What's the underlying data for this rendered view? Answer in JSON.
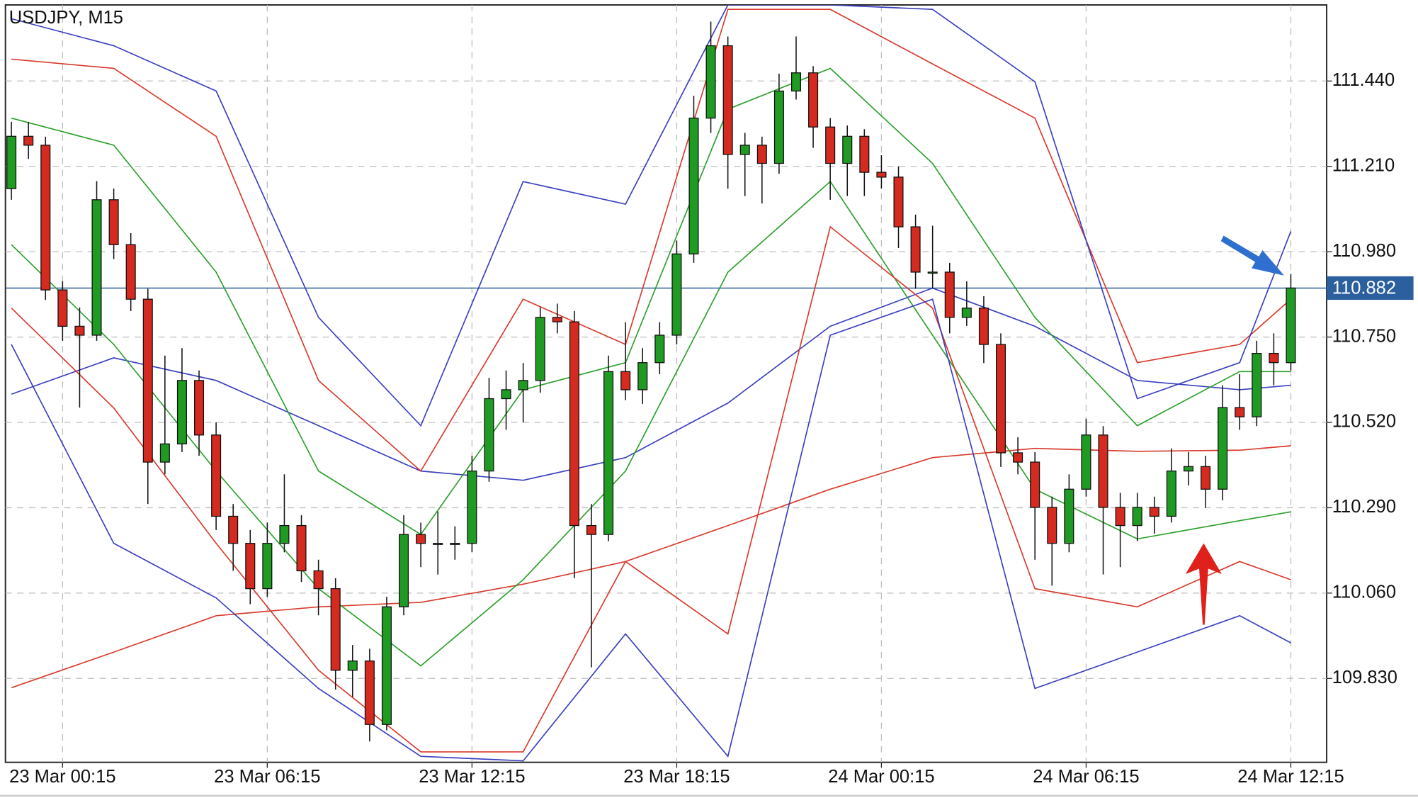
{
  "chart_data": {
    "type": "candlestick",
    "title": "USDJPY, M15",
    "bull_color": "#1f9a22",
    "bear_color": "#d42a1f",
    "xlim": [
      -3.35,
      74.1
    ],
    "ylim": [
      109.604,
      111.645
    ],
    "xticks": [
      {
        "value": 0,
        "label": "23 Mar 00:15"
      },
      {
        "value": 12,
        "label": "23 Mar 06:15"
      },
      {
        "value": 24,
        "label": "23 Mar 12:15"
      },
      {
        "value": 36,
        "label": "23 Mar 18:15"
      },
      {
        "value": 48,
        "label": "24 Mar 00:15"
      },
      {
        "value": 60,
        "label": "24 Mar 06:15"
      },
      {
        "value": 72,
        "label": "24 Mar 12:15"
      }
    ],
    "yticks": [
      {
        "value": 109.83,
        "label": "109.830"
      },
      {
        "value": 110.06,
        "label": "110.060"
      },
      {
        "value": 110.29,
        "label": "110.290"
      },
      {
        "value": 110.52,
        "label": "110.520"
      },
      {
        "value": 110.75,
        "label": "110.750"
      },
      {
        "value": 110.98,
        "label": "110.980"
      },
      {
        "value": 111.21,
        "label": "111.210"
      },
      {
        "value": 111.44,
        "label": "111.440"
      }
    ],
    "grid": true,
    "current_price": 110.882,
    "current_price_color": "#2b5f9e",
    "x": [
      -3,
      -2,
      -1,
      0,
      1,
      2,
      3,
      4,
      5,
      6,
      7,
      8,
      9,
      10,
      11,
      12,
      13,
      14,
      15,
      16,
      17,
      18,
      19,
      20,
      21,
      22,
      23,
      24,
      25,
      26,
      27,
      28,
      29,
      30,
      31,
      32,
      33,
      34,
      35,
      36,
      37,
      38,
      39,
      40,
      41,
      42,
      43,
      44,
      45,
      46,
      47,
      48,
      49,
      50,
      51,
      52,
      53,
      54,
      55,
      56,
      57,
      58,
      59,
      60,
      61,
      62,
      63,
      64,
      65,
      66,
      67,
      68,
      69,
      70,
      71,
      72
    ],
    "ohlc": [
      [
        111.15,
        111.33,
        111.12,
        111.291
      ],
      [
        111.291,
        111.33,
        111.23,
        111.267
      ],
      [
        111.267,
        111.29,
        110.85,
        110.877
      ],
      [
        110.877,
        110.9,
        110.74,
        110.779
      ],
      [
        110.779,
        110.83,
        110.56,
        110.755
      ],
      [
        110.755,
        111.17,
        110.74,
        111.12
      ],
      [
        111.12,
        111.15,
        110.96,
        110.999
      ],
      [
        110.999,
        111.03,
        110.82,
        110.852
      ],
      [
        110.852,
        110.88,
        110.3,
        110.413
      ],
      [
        110.413,
        110.7,
        110.38,
        110.462
      ],
      [
        110.462,
        110.72,
        110.44,
        110.633
      ],
      [
        110.633,
        110.66,
        110.43,
        110.486
      ],
      [
        110.486,
        110.52,
        110.23,
        110.267
      ],
      [
        110.267,
        110.3,
        110.12,
        110.194
      ],
      [
        110.194,
        110.23,
        110.03,
        110.072
      ],
      [
        110.072,
        110.25,
        110.05,
        110.194
      ],
      [
        110.194,
        110.38,
        110.17,
        110.242
      ],
      [
        110.242,
        110.27,
        110.09,
        110.12
      ],
      [
        110.12,
        110.15,
        110.0,
        110.072
      ],
      [
        110.072,
        110.1,
        109.8,
        109.852
      ],
      [
        109.852,
        109.92,
        109.78,
        109.877
      ],
      [
        109.877,
        109.91,
        109.66,
        109.706
      ],
      [
        109.706,
        110.05,
        109.69,
        110.023
      ],
      [
        110.023,
        110.27,
        110.0,
        110.218
      ],
      [
        110.218,
        110.25,
        110.13,
        110.194
      ],
      [
        110.194,
        110.28,
        110.11,
        110.194
      ],
      [
        110.194,
        110.24,
        110.15,
        110.194
      ],
      [
        110.194,
        110.43,
        110.17,
        110.389
      ],
      [
        110.389,
        110.64,
        110.36,
        110.584
      ],
      [
        110.584,
        110.66,
        110.5,
        110.608
      ],
      [
        110.608,
        110.68,
        110.52,
        110.633
      ],
      [
        110.633,
        110.83,
        110.6,
        110.803
      ],
      [
        110.803,
        110.84,
        110.76,
        110.791
      ],
      [
        110.791,
        110.82,
        110.1,
        110.242
      ],
      [
        110.242,
        110.3,
        109.86,
        110.218
      ],
      [
        110.218,
        110.7,
        110.2,
        110.657
      ],
      [
        110.657,
        110.79,
        110.58,
        110.608
      ],
      [
        110.608,
        110.72,
        110.57,
        110.681
      ],
      [
        110.681,
        110.79,
        110.65,
        110.755
      ],
      [
        110.755,
        111.01,
        110.73,
        110.974
      ],
      [
        110.974,
        111.4,
        110.95,
        111.34
      ],
      [
        111.34,
        111.6,
        111.3,
        111.535
      ],
      [
        111.535,
        111.56,
        111.15,
        111.242
      ],
      [
        111.242,
        111.3,
        111.13,
        111.267
      ],
      [
        111.267,
        111.29,
        111.11,
        111.218
      ],
      [
        111.218,
        111.46,
        111.19,
        111.413
      ],
      [
        111.413,
        111.56,
        111.39,
        111.462
      ],
      [
        111.462,
        111.48,
        111.26,
        111.316
      ],
      [
        111.316,
        111.34,
        111.12,
        111.218
      ],
      [
        111.218,
        111.32,
        111.13,
        111.291
      ],
      [
        111.291,
        111.31,
        111.13,
        111.194
      ],
      [
        111.194,
        111.24,
        111.15,
        111.181
      ],
      [
        111.181,
        111.21,
        110.99,
        111.047
      ],
      [
        111.047,
        111.08,
        110.88,
        110.925
      ],
      [
        110.925,
        111.05,
        110.88,
        110.925
      ],
      [
        110.925,
        110.95,
        110.76,
        110.803
      ],
      [
        110.803,
        110.9,
        110.78,
        110.828
      ],
      [
        110.828,
        110.86,
        110.68,
        110.73
      ],
      [
        110.73,
        110.76,
        110.4,
        110.438
      ],
      [
        110.438,
        110.48,
        110.38,
        110.413
      ],
      [
        110.413,
        110.44,
        110.15,
        110.291
      ],
      [
        110.291,
        110.32,
        110.08,
        110.194
      ],
      [
        110.194,
        110.38,
        110.17,
        110.34
      ],
      [
        110.34,
        110.53,
        110.32,
        110.486
      ],
      [
        110.486,
        110.51,
        110.11,
        110.291
      ],
      [
        110.291,
        110.33,
        110.13,
        110.242
      ],
      [
        110.242,
        110.33,
        110.2,
        110.291
      ],
      [
        110.291,
        110.32,
        110.22,
        110.267
      ],
      [
        110.267,
        110.45,
        110.25,
        110.389
      ],
      [
        110.389,
        110.44,
        110.35,
        110.401
      ],
      [
        110.401,
        110.43,
        110.29,
        110.34
      ],
      [
        110.34,
        110.62,
        110.31,
        110.56
      ],
      [
        110.56,
        110.65,
        110.5,
        110.535
      ],
      [
        110.535,
        110.74,
        110.51,
        110.706
      ],
      [
        110.706,
        110.76,
        110.62,
        110.681
      ],
      [
        110.681,
        110.92,
        110.66,
        110.882
      ]
    ],
    "lines": [
      {
        "color": "#d83a2c",
        "x": [
          -3,
          3,
          9,
          15,
          21,
          27,
          33,
          39,
          45,
          51,
          57,
          63,
          69,
          72
        ],
        "values": [
          109.805,
          109.901,
          109.999,
          110.023,
          110.035,
          110.084,
          110.145,
          110.242,
          110.34,
          110.425,
          110.45,
          110.442,
          110.445,
          110.457
        ]
      },
      {
        "color": "#3a3fc0",
        "x": [
          -3,
          3,
          9,
          15,
          21,
          27,
          33,
          39,
          45,
          51,
          57,
          63,
          69,
          72
        ],
        "values": [
          110.596,
          110.694,
          110.633,
          110.511,
          110.389,
          110.364,
          110.425,
          110.572,
          110.779,
          110.882,
          110.779,
          110.633,
          110.608,
          110.62
        ]
      },
      {
        "color": "#2ca02c",
        "x": [
          -3,
          3,
          9,
          15,
          21,
          27,
          33,
          39,
          45,
          51,
          57,
          63,
          69,
          72
        ],
        "values": [
          111.34,
          111.267,
          110.925,
          110.389,
          110.218,
          110.608,
          110.681,
          111.364,
          111.474,
          111.218,
          110.803,
          110.511,
          110.657,
          110.657
        ]
      },
      {
        "color": "#2ca02c",
        "x": [
          -3,
          3,
          9,
          15,
          21,
          27,
          33,
          39,
          45,
          51,
          57,
          63,
          69,
          72
        ],
        "values": [
          110.999,
          110.73,
          110.389,
          110.072,
          109.864,
          110.096,
          110.389,
          110.925,
          111.169,
          110.755,
          110.34,
          110.206,
          110.255,
          110.279
        ]
      },
      {
        "color": "#d83a2c",
        "x": [
          -3,
          3,
          9,
          15,
          21,
          27,
          33,
          39,
          45,
          51,
          57,
          63,
          69,
          72
        ],
        "values": [
          111.499,
          111.474,
          111.291,
          110.633,
          110.389,
          110.852,
          110.73,
          111.633,
          111.633,
          111.486,
          111.34,
          110.681,
          110.73,
          110.852
        ]
      },
      {
        "color": "#d83a2c",
        "x": [
          -3,
          3,
          9,
          15,
          21,
          27,
          33,
          39,
          45,
          51,
          57,
          63,
          69,
          72
        ],
        "values": [
          110.828,
          110.559,
          110.194,
          109.852,
          109.632,
          109.632,
          110.145,
          109.95,
          111.047,
          110.828,
          110.072,
          110.023,
          110.145,
          110.096
        ]
      },
      {
        "color": "#3a3fc0",
        "x": [
          -3,
          3,
          9,
          15,
          21,
          27,
          33,
          39,
          45,
          51,
          57,
          63,
          69,
          72
        ],
        "values": [
          111.608,
          111.535,
          111.413,
          110.803,
          110.511,
          111.169,
          111.108,
          111.645,
          111.645,
          111.633,
          111.438,
          110.584,
          110.681,
          111.035
        ]
      },
      {
        "color": "#3a3fc0",
        "x": [
          -3,
          3,
          9,
          15,
          21,
          27,
          33,
          39,
          45,
          51,
          57,
          63,
          69,
          72
        ],
        "values": [
          110.73,
          110.194,
          110.047,
          109.803,
          109.62,
          109.608,
          109.95,
          109.62,
          110.755,
          110.852,
          109.803,
          109.901,
          109.999,
          109.926
        ]
      }
    ]
  }
}
